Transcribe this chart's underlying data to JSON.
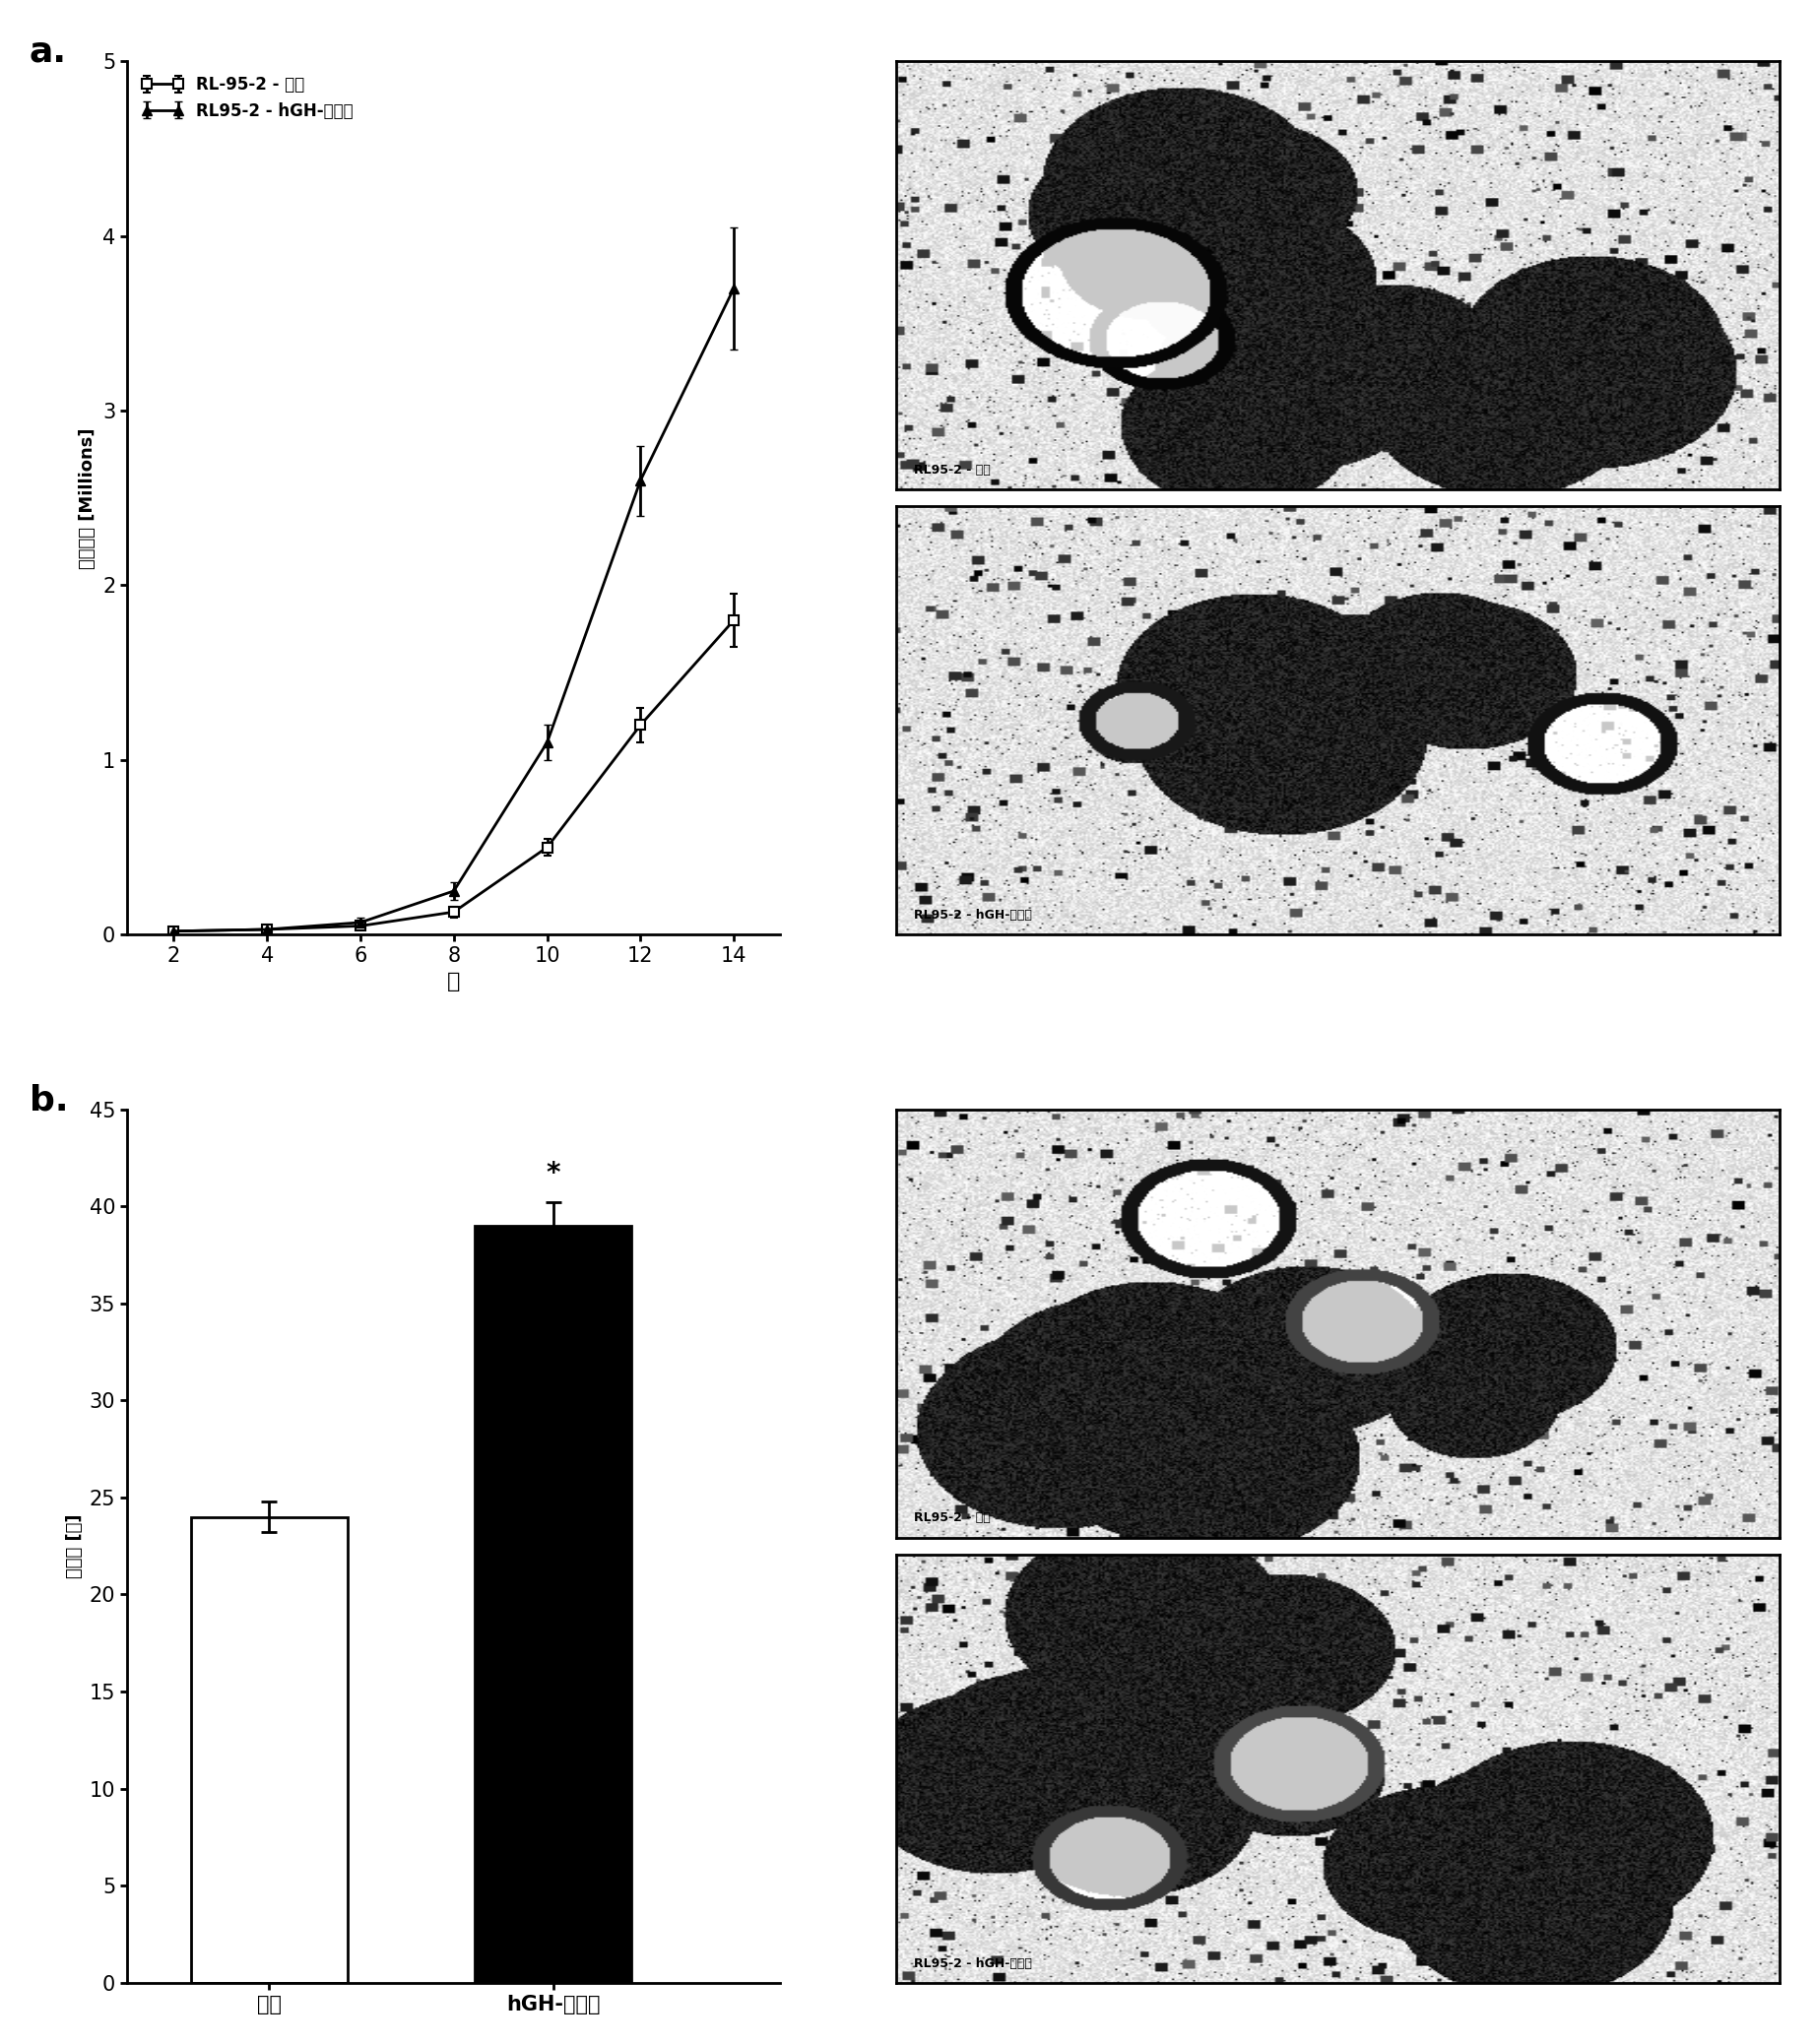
{
  "line_x": [
    2,
    4,
    6,
    8,
    10,
    12,
    14
  ],
  "vector_y": [
    0.02,
    0.03,
    0.05,
    0.13,
    0.5,
    1.2,
    1.8
  ],
  "vector_err": [
    0.01,
    0.01,
    0.02,
    0.03,
    0.05,
    0.1,
    0.15
  ],
  "hgh_y": [
    0.02,
    0.03,
    0.07,
    0.25,
    1.1,
    2.6,
    3.7
  ],
  "hgh_err": [
    0.01,
    0.01,
    0.03,
    0.05,
    0.1,
    0.2,
    0.35
  ],
  "line_ylabel": "细胞浓度 [Millions]",
  "line_xlabel": "天",
  "legend1": "RL-95-2 - 载体",
  "legend2": "RL95-2 - hGH-稳定的",
  "ylim_line": [
    0,
    5
  ],
  "yticks_line": [
    0,
    1,
    2,
    3,
    4,
    5
  ],
  "xticks_line": [
    2,
    4,
    6,
    8,
    10,
    12,
    14
  ],
  "bar_categories": [
    "载体",
    "hGH-稳定的"
  ],
  "bar_values": [
    24,
    39
  ],
  "bar_errors": [
    0.8,
    1.2
  ],
  "bar_colors": [
    "#ffffff",
    "#000000"
  ],
  "bar_ylabel": "菌落数 [百]",
  "ylim_bar": [
    0,
    45
  ],
  "yticks_bar": [
    0,
    5,
    10,
    15,
    20,
    25,
    30,
    35,
    40,
    45
  ],
  "panel_a_label": "a.",
  "panel_b_label": "b.",
  "bg_color": "#ffffff",
  "img_label_1": "RL95-2 - 载体",
  "img_label_2": "RL95-2 - hGH-稳定的",
  "img_label_3": "RL95-2 - 载体",
  "img_label_4": "RL95-2 - hGH-稳定的"
}
